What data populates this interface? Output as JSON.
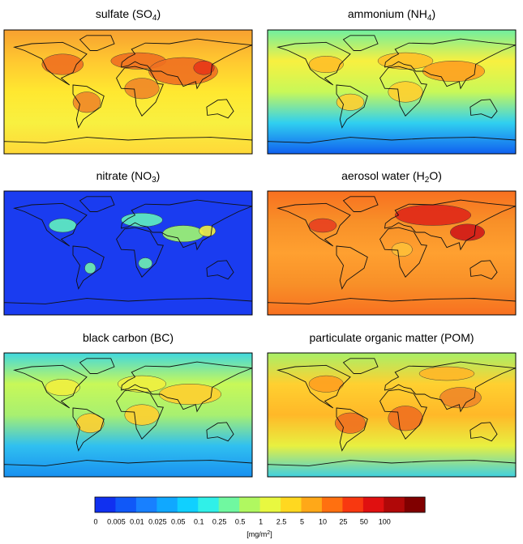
{
  "panels": [
    {
      "title": {
        "main": "sulfate (SO",
        "sub": "4",
        "end": ")"
      }
    },
    {
      "title": {
        "main": "ammonium (NH",
        "sub": "4",
        "end": ")"
      }
    },
    {
      "title": {
        "main": "nitrate (NO",
        "sub": "3",
        "end": ")"
      }
    },
    {
      "title": {
        "main": "aerosol water (H",
        "sub": "2",
        "end": "O)"
      }
    },
    {
      "title": {
        "main": "black carbon (BC)"
      }
    },
    {
      "title": {
        "main": "particulate organic matter (POM)"
      }
    }
  ],
  "colorbar": {
    "levels": [
      0,
      0.005,
      0.01,
      0.025,
      0.05,
      0.1,
      0.25,
      0.5,
      1,
      2.5,
      5,
      10,
      25,
      50,
      100
    ],
    "colors": [
      "#1030f0",
      "#1058f8",
      "#1880ff",
      "#10a8ff",
      "#10d0ff",
      "#30f0e8",
      "#70f8a0",
      "#b0f860",
      "#e8f840",
      "#ffd820",
      "#ffa818",
      "#ff7010",
      "#f83810",
      "#e01010",
      "#b00808",
      "#800000"
    ],
    "unit": {
      "main": "[mg/m",
      "sup": "2",
      "end": "]"
    }
  }
}
